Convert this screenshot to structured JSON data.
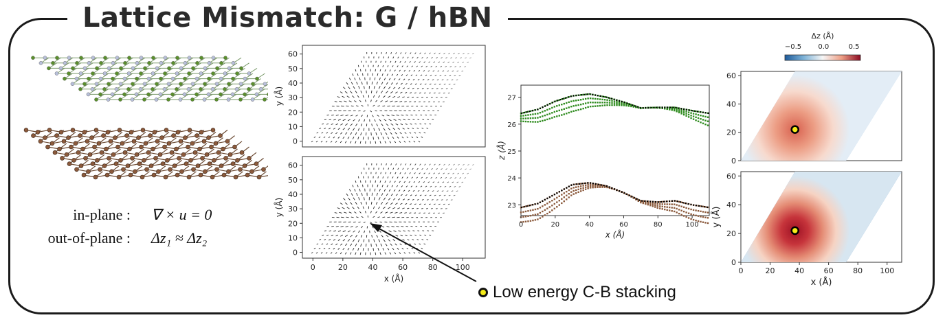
{
  "title": "Lattice Mismatch: G / hBN",
  "equations": {
    "inplane_label": "in-plane :",
    "inplane_expr": "∇ × u = 0",
    "outplane_label": "out-of-plane :",
    "outplane_expr": "Δz₁ ≈ Δz₂"
  },
  "annotation": "Low energy C-B stacking",
  "colors": {
    "graphene": "#3a9a1e",
    "boron": "#5a8f2c",
    "nitrogen": "#b7bfd9",
    "lower_layer": "#8b5a3c",
    "highlight_dot": "#f5ec1a"
  },
  "chart_data": [
    {
      "type": "quiver",
      "panel": "top-left vector field",
      "xlabel": "",
      "ylabel": "y (Å)",
      "yticks": [
        0,
        10,
        20,
        30,
        40,
        50,
        60
      ],
      "xlim": [
        -7,
        115
      ],
      "ylim": [
        -4,
        66
      ],
      "center": [
        37,
        22
      ]
    },
    {
      "type": "quiver",
      "panel": "bottom-left vector field",
      "xlabel": "x (Å)",
      "ylabel": "y (Å)",
      "xticks": [
        0,
        20,
        40,
        60,
        80,
        100
      ],
      "yticks": [
        0,
        10,
        20,
        30,
        40,
        50,
        60
      ],
      "xlim": [
        -7,
        115
      ],
      "ylim": [
        -4,
        66
      ],
      "center": [
        37,
        22
      ]
    },
    {
      "type": "scatter",
      "panel": "height profile",
      "xlabel": "x (Å)",
      "ylabel": "z (Å)",
      "xticks": [
        0,
        20,
        40,
        60,
        80,
        100
      ],
      "yticks": [
        23,
        24,
        25,
        26,
        27
      ],
      "xlim": [
        0,
        110
      ],
      "ylim": [
        22.6,
        27.45
      ],
      "series": [
        {
          "color": "#2e8b1e",
          "x": [
            0,
            10,
            20,
            30,
            40,
            50,
            60,
            70,
            80,
            90,
            100,
            110
          ],
          "y": [
            26.4,
            26.55,
            26.85,
            27.05,
            27.12,
            27.0,
            26.82,
            26.6,
            26.62,
            26.62,
            26.5,
            26.4
          ]
        },
        {
          "color": "#8b5a3c",
          "x": [
            0,
            10,
            20,
            30,
            40,
            50,
            60,
            70,
            80,
            90,
            100,
            110
          ],
          "y": [
            22.9,
            23.05,
            23.4,
            23.75,
            23.82,
            23.7,
            23.45,
            23.15,
            23.1,
            23.15,
            23.0,
            22.9
          ]
        }
      ]
    },
    {
      "type": "heatmap",
      "panel": "top-right Δz map",
      "xlabel": "",
      "ylabel": "",
      "colorbar_label": "Δz (Å)",
      "colorbar_ticks": [
        "−0.5",
        "0.0",
        "0.5"
      ],
      "yticks": [
        0,
        20,
        40,
        60
      ],
      "xlim": [
        0,
        110
      ],
      "ylim": [
        0,
        63
      ],
      "marker": [
        37,
        22
      ]
    },
    {
      "type": "heatmap",
      "panel": "bottom-right Δz map",
      "xlabel": "x (Å)",
      "ylabel": "y (Å)",
      "xticks": [
        0,
        20,
        40,
        60,
        80,
        100
      ],
      "yticks": [
        0,
        20,
        40,
        60
      ],
      "xlim": [
        0,
        110
      ],
      "ylim": [
        0,
        63
      ],
      "marker": [
        37,
        22
      ]
    }
  ]
}
